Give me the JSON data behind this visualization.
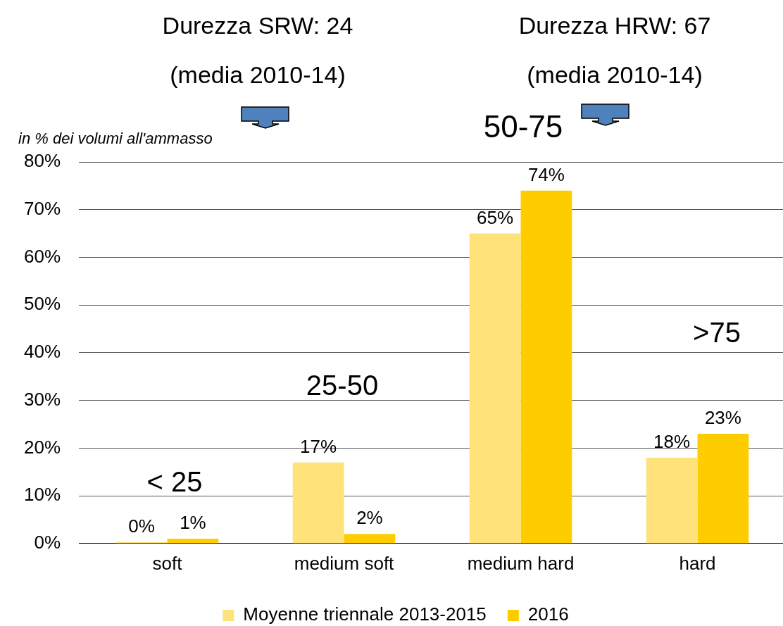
{
  "chart_data": {
    "type": "bar",
    "categories": [
      "soft",
      "medium soft",
      "medium hard",
      "hard"
    ],
    "series": [
      {
        "name": "Moyenne triennale 2013-2015",
        "color": "#ffe27a",
        "values": [
          0.3,
          17,
          65,
          18
        ],
        "value_labels": [
          "0%",
          "17%",
          "65%",
          "18%"
        ]
      },
      {
        "name": "2016",
        "color": "#ffcc00",
        "values": [
          1,
          2,
          74,
          23
        ],
        "value_labels": [
          "1%",
          "2%",
          "74%",
          "23%"
        ]
      }
    ],
    "ylim": [
      0,
      80
    ],
    "yticks": [
      {
        "value": 0,
        "label": "0%"
      },
      {
        "value": 10,
        "label": "10%"
      },
      {
        "value": 20,
        "label": "20%"
      },
      {
        "value": 30,
        "label": "30%"
      },
      {
        "value": 40,
        "label": "40%"
      },
      {
        "value": 50,
        "label": "50%"
      },
      {
        "value": 60,
        "label": "60%"
      },
      {
        "value": 70,
        "label": "70%"
      },
      {
        "value": 80,
        "label": "80%"
      }
    ],
    "grid": "y",
    "legend": "bottom",
    "annotations": [
      "Durezza SRW: 24",
      "(media 2010-14)",
      "Durezza HRW: 67",
      "(media 2010-14)",
      "in % dei volumi all'ammasso",
      "< 25",
      "25-50",
      "50-75",
      ">75"
    ]
  }
}
